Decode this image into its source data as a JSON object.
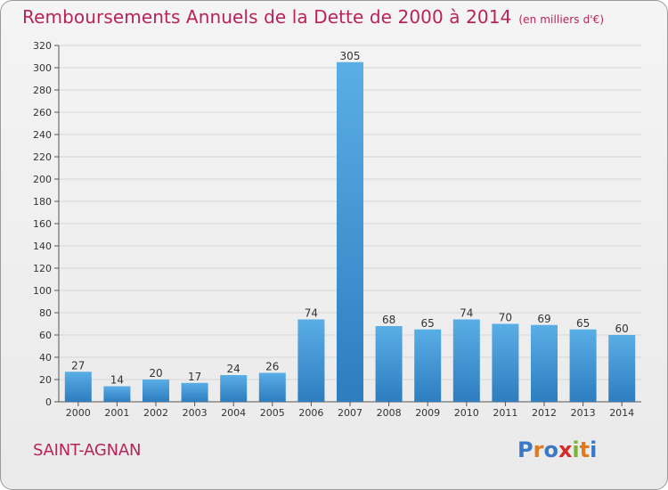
{
  "header": {
    "title": "Remboursements Annuels de la Dette de 2000 à 2014",
    "unit": "(en milliers d'€)"
  },
  "footer": {
    "commune": "SAINT-AGNAN",
    "logo_text": "Proxiti"
  },
  "colors": {
    "title": "#b8235a",
    "bar_top": "#5aaee6",
    "bar_bottom": "#2d7dbf",
    "logo_letters": [
      "#3a78c8",
      "#e0791f",
      "#3a78c8",
      "#d62b2b",
      "#7bb23a",
      "#e0791f",
      "#3a78c8"
    ]
  },
  "chart_data": {
    "type": "bar",
    "title": "Remboursements Annuels de la Dette de 2000 à 2014",
    "subtitle": "(en milliers d'€)",
    "xlabel": "",
    "ylabel": "",
    "categories": [
      "2000",
      "2001",
      "2002",
      "2003",
      "2004",
      "2005",
      "2006",
      "2007",
      "2008",
      "2009",
      "2010",
      "2011",
      "2012",
      "2013",
      "2014"
    ],
    "values": [
      27,
      14,
      20,
      17,
      24,
      26,
      74,
      305,
      68,
      65,
      74,
      70,
      69,
      65,
      60
    ],
    "ylim": [
      0,
      320
    ],
    "yticks": [
      0,
      20,
      40,
      60,
      80,
      100,
      120,
      140,
      160,
      180,
      200,
      220,
      240,
      260,
      280,
      300,
      320
    ],
    "grid": true,
    "legend": "none"
  }
}
